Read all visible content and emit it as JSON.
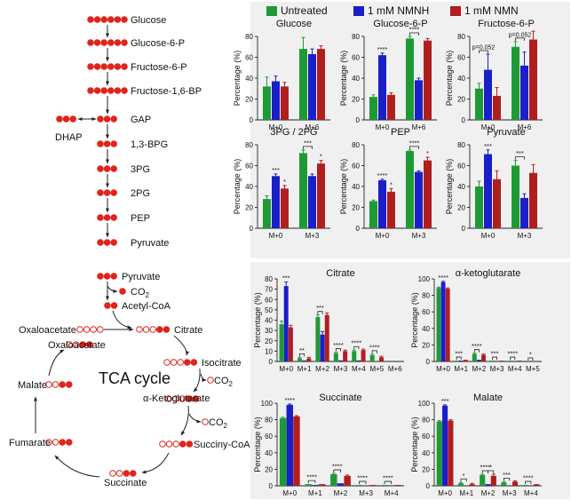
{
  "colors": {
    "untreated": "#1e9a35",
    "nmnh": "#1a1fc8",
    "nmn": "#b11e1e",
    "panel_bg": "#f0f0f0",
    "error": "#666666"
  },
  "legend": [
    "Untreated",
    "1 mM NMNH",
    "1 mM NMN"
  ],
  "glycolysis": {
    "metabolites": [
      "Glucose",
      "Glucose-6-P",
      "Fructose-6-P",
      "Fructose-1,6-BP",
      "GAP",
      "1,3-BPG",
      "3PG",
      "2PG",
      "PEP",
      "Pyruvate"
    ],
    "dots": [
      6,
      6,
      6,
      6,
      3,
      3,
      3,
      3,
      3,
      3
    ],
    "side": {
      "label": "DHAP",
      "dots": 3
    }
  },
  "tca": {
    "pyruvate": "Pyruvate",
    "co2": "CO",
    "co2_sub": "2",
    "acetyl": "Acetyl-CoA",
    "cycle_label": "TCA cycle",
    "oaa_top": "Oxaloacetate",
    "citrate": "Citrate",
    "oaa_inner": "Oxaloacetate",
    "isocitrate": "Isocitrate",
    "akg": "α-Ketoglutarate",
    "malate": "Malate",
    "succinyl": "Succiny-CoA",
    "fumarate": "Fumarate",
    "succinate": "Succinate"
  },
  "chart_data": [
    {
      "title": "Glucose",
      "type": "bar",
      "categories": [
        "M+0",
        "M+6"
      ],
      "ylabel": "Percentage (%)",
      "ylim": [
        0,
        80
      ],
      "yticks": [
        0,
        20,
        40,
        60,
        80
      ],
      "series": [
        {
          "name": "Untreated",
          "values": [
            32,
            68
          ]
        },
        {
          "name": "1 mM NMNH",
          "values": [
            37,
            63
          ]
        },
        {
          "name": "1 mM NMN",
          "values": [
            32,
            68
          ]
        }
      ],
      "errors": [
        [
          9,
          11
        ],
        [
          5,
          5
        ],
        [
          4,
          3
        ]
      ],
      "annotations": []
    },
    {
      "title": "Glucose-6-P",
      "type": "bar",
      "categories": [
        "M+0",
        "M+6"
      ],
      "ylabel": "Percentage (%)",
      "ylim": [
        0,
        80
      ],
      "yticks": [
        0,
        20,
        40,
        60,
        80
      ],
      "series": [
        {
          "name": "Untreated",
          "values": [
            22,
            78
          ]
        },
        {
          "name": "1 mM NMNH",
          "values": [
            62,
            38
          ]
        },
        {
          "name": "1 mM NMN",
          "values": [
            24,
            76
          ]
        }
      ],
      "errors": [
        [
          2,
          2
        ],
        [
          2,
          2
        ],
        [
          2,
          2
        ]
      ],
      "annotations": [
        {
          "text": "****",
          "cat": 0,
          "series": 1
        },
        {
          "text": "****",
          "cat": 1,
          "bracket": [
            0,
            1
          ]
        }
      ]
    },
    {
      "title": "Fructose-6-P",
      "type": "bar",
      "categories": [
        "M+0",
        "M+6"
      ],
      "ylabel": "Percentage (%)",
      "ylim": [
        0,
        80
      ],
      "yticks": [
        0,
        20,
        40,
        60,
        80
      ],
      "series": [
        {
          "name": "Untreated",
          "values": [
            30,
            70
          ]
        },
        {
          "name": "1 mM NMNH",
          "values": [
            48,
            52
          ]
        },
        {
          "name": "1 mM NMN",
          "values": [
            23,
            77
          ]
        }
      ],
      "errors": [
        [
          5,
          5
        ],
        [
          15,
          13
        ],
        [
          8,
          8
        ]
      ],
      "annotations": [
        {
          "text": "p=0.052",
          "cat": 0,
          "bracket": [
            0,
            1
          ]
        },
        {
          "text": "p=0.052",
          "cat": 1,
          "bracket": [
            0,
            1
          ]
        }
      ]
    },
    {
      "title": "3PG / 2PG",
      "type": "bar",
      "categories": [
        "M+0",
        "M+3"
      ],
      "ylabel": "Percentage (%)",
      "ylim": [
        0,
        80
      ],
      "yticks": [
        0,
        20,
        40,
        60,
        80
      ],
      "series": [
        {
          "name": "Untreated",
          "values": [
            28,
            72
          ]
        },
        {
          "name": "1 mM NMNH",
          "values": [
            50,
            50
          ]
        },
        {
          "name": "1 mM NMN",
          "values": [
            38,
            62
          ]
        }
      ],
      "errors": [
        [
          3,
          3
        ],
        [
          2,
          2
        ],
        [
          3,
          3
        ]
      ],
      "annotations": [
        {
          "text": "***",
          "cat": 0,
          "series": 1
        },
        {
          "text": "*",
          "cat": 0,
          "series": 2
        },
        {
          "text": "***",
          "cat": 1,
          "bracket": [
            0,
            1
          ]
        },
        {
          "text": "*",
          "cat": 1,
          "series": 2
        }
      ]
    },
    {
      "title": "PEP",
      "type": "bar",
      "categories": [
        "M+0",
        "M+3"
      ],
      "ylabel": "Percentage (%)",
      "ylim": [
        0,
        80
      ],
      "yticks": [
        0,
        20,
        40,
        60,
        80
      ],
      "series": [
        {
          "name": "Untreated",
          "values": [
            26,
            74
          ]
        },
        {
          "name": "1 mM NMNH",
          "values": [
            46,
            54
          ]
        },
        {
          "name": "1 mM NMN",
          "values": [
            35,
            65
          ]
        }
      ],
      "errors": [
        [
          1,
          1
        ],
        [
          1,
          1
        ],
        [
          3,
          3
        ]
      ],
      "annotations": [
        {
          "text": "****",
          "cat": 0,
          "series": 1
        },
        {
          "text": "*",
          "cat": 0,
          "series": 2
        },
        {
          "text": "****",
          "cat": 1,
          "bracket": [
            0,
            1
          ]
        },
        {
          "text": "*",
          "cat": 1,
          "series": 2
        }
      ]
    },
    {
      "title": "Pyruvate",
      "type": "bar",
      "categories": [
        "M+0",
        "M+3"
      ],
      "ylabel": "Percentage (%)",
      "ylim": [
        0,
        80
      ],
      "yticks": [
        0,
        20,
        40,
        60,
        80
      ],
      "series": [
        {
          "name": "Untreated",
          "values": [
            40,
            60
          ]
        },
        {
          "name": "1 mM NMNH",
          "values": [
            71,
            29
          ]
        },
        {
          "name": "1 mM NMN",
          "values": [
            47,
            53
          ]
        }
      ],
      "errors": [
        [
          5,
          5
        ],
        [
          4,
          4
        ],
        [
          8,
          8
        ]
      ],
      "annotations": [
        {
          "text": "***",
          "cat": 0,
          "series": 1
        },
        {
          "text": "***",
          "cat": 1,
          "bracket": [
            0,
            1
          ]
        }
      ]
    },
    {
      "title": "Citrate",
      "type": "bar",
      "categories": [
        "M+0",
        "M+1",
        "M+2",
        "M+3",
        "M+4",
        "M+5",
        "M+6"
      ],
      "ylabel": "Percentage (%)",
      "ylim": [
        0,
        80
      ],
      "yticks": [
        0,
        10,
        20,
        30,
        40,
        50,
        60,
        70,
        80
      ],
      "series": [
        {
          "name": "Untreated",
          "values": [
            36,
            3,
            43,
            8,
            10,
            6,
            0
          ]
        },
        {
          "name": "1 mM NMNH",
          "values": [
            73,
            1,
            26,
            1,
            1,
            0,
            0
          ]
        },
        {
          "name": "1 mM NMN",
          "values": [
            33,
            3,
            45,
            10,
            11,
            4,
            0
          ]
        }
      ],
      "errors": [
        [
          3,
          1,
          2,
          1,
          1,
          1,
          0
        ],
        [
          4,
          0,
          3,
          0,
          0,
          0,
          0
        ],
        [
          2,
          1,
          2,
          1,
          1,
          1,
          0
        ]
      ],
      "annotations": [
        {
          "text": "***",
          "cat": 0,
          "series": 1
        },
        {
          "text": "**",
          "cat": 1,
          "bracket": [
            0,
            1
          ]
        },
        {
          "text": "***",
          "cat": 2,
          "bracket": [
            0,
            1
          ]
        },
        {
          "text": "****",
          "cat": 3,
          "bracket": [
            0,
            1
          ]
        },
        {
          "text": "****",
          "cat": 4,
          "bracket": [
            0,
            1
          ]
        },
        {
          "text": "****",
          "cat": 5,
          "bracket": [
            0,
            1
          ]
        }
      ]
    },
    {
      "title": "α-ketoglutarate",
      "type": "bar",
      "categories": [
        "M+0",
        "M+1",
        "M+2",
        "M+3",
        "M+4",
        "M+5"
      ],
      "ylabel": "Percentage (%)",
      "ylim": [
        0,
        100
      ],
      "yticks": [
        0,
        20,
        40,
        60,
        80,
        100
      ],
      "series": [
        {
          "name": "Untreated",
          "values": [
            89,
            1,
            9,
            1,
            1,
            0
          ]
        },
        {
          "name": "1 mM NMNH",
          "values": [
            96,
            1,
            2,
            0,
            0,
            0
          ]
        },
        {
          "name": "1 mM NMN",
          "values": [
            88,
            2,
            8,
            1,
            1,
            0
          ]
        }
      ],
      "errors": [
        [
          1,
          0,
          1,
          0,
          0,
          0
        ],
        [
          1,
          0,
          0,
          0,
          0,
          0
        ],
        [
          1,
          0,
          1,
          0,
          0,
          0
        ]
      ],
      "annotations": [
        {
          "text": "****",
          "cat": 0,
          "series": 1
        },
        {
          "text": "***",
          "cat": 1,
          "bracket": [
            0,
            1
          ]
        },
        {
          "text": "****",
          "cat": 2,
          "bracket": [
            0,
            1
          ]
        },
        {
          "text": "***",
          "cat": 3,
          "bracket": [
            0,
            1
          ]
        },
        {
          "text": "****",
          "cat": 4,
          "bracket": [
            0,
            1
          ]
        },
        {
          "text": "*",
          "cat": 5,
          "bracket": [
            0,
            1
          ]
        }
      ]
    },
    {
      "title": "Succinate",
      "type": "bar",
      "categories": [
        "M+0",
        "M+1",
        "M+2",
        "M+3",
        "M+4"
      ],
      "ylabel": "Percentage (%)",
      "ylim": [
        0,
        100
      ],
      "yticks": [
        0,
        20,
        40,
        60,
        80,
        100
      ],
      "series": [
        {
          "name": "Untreated",
          "values": [
            82,
            2,
            14,
            1,
            1
          ]
        },
        {
          "name": "1 mM NMNH",
          "values": [
            98,
            1,
            3,
            0,
            0
          ]
        },
        {
          "name": "1 mM NMN",
          "values": [
            84,
            2,
            12,
            1,
            1
          ]
        }
      ],
      "errors": [
        [
          1,
          0,
          1,
          0,
          0
        ],
        [
          1,
          0,
          0,
          0,
          0
        ],
        [
          1,
          0,
          1,
          0,
          0
        ]
      ],
      "annotations": [
        {
          "text": "****",
          "cat": 0,
          "series": 1
        },
        {
          "text": "****",
          "cat": 1,
          "bracket": [
            0,
            1
          ]
        },
        {
          "text": "****",
          "cat": 2,
          "bracket": [
            0,
            1
          ]
        },
        {
          "text": "****",
          "cat": 3,
          "bracket": [
            0,
            1
          ]
        },
        {
          "text": "****",
          "cat": 4,
          "bracket": [
            0,
            1
          ]
        }
      ]
    },
    {
      "title": "Malate",
      "type": "bar",
      "categories": [
        "M+0",
        "M+1",
        "M+2",
        "M+3",
        "M+4"
      ],
      "ylabel": "Percentage (%)",
      "ylim": [
        0,
        100
      ],
      "yticks": [
        0,
        20,
        40,
        60,
        80,
        100
      ],
      "series": [
        {
          "name": "Untreated",
          "values": [
            78,
            3,
            13,
            4,
            1
          ]
        },
        {
          "name": "1 mM NMNH",
          "values": [
            97,
            0,
            2,
            0,
            0
          ]
        },
        {
          "name": "1 mM NMN",
          "values": [
            79,
            2,
            12,
            5,
            2
          ]
        }
      ],
      "errors": [
        [
          1,
          1,
          1,
          1,
          0
        ],
        [
          1,
          0,
          0,
          0,
          0
        ],
        [
          1,
          1,
          2,
          1,
          0
        ]
      ],
      "annotations": [
        {
          "text": "***",
          "cat": 0,
          "series": 1
        },
        {
          "text": "*",
          "cat": 1,
          "bracket": [
            0,
            1
          ]
        },
        {
          "text": "****",
          "cat": 2,
          "bracket": [
            0,
            1
          ]
        },
        {
          "text": "*",
          "cat": 2,
          "bracket": [
            1,
            2
          ]
        },
        {
          "text": "***",
          "cat": 3,
          "bracket": [
            0,
            1
          ]
        },
        {
          "text": "****",
          "cat": 4,
          "bracket": [
            0,
            1
          ]
        }
      ]
    }
  ]
}
